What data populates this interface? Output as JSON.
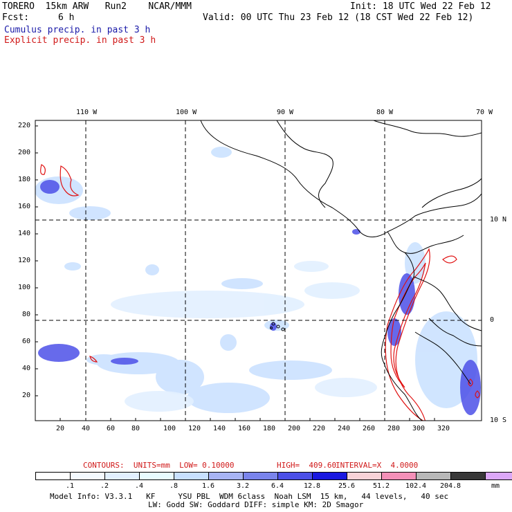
{
  "header": {
    "model": "TORERO  15km ARW   Run2    NCAR/MMM",
    "init": "Init: 18 UTC Wed 22 Feb 12",
    "fcst_label": "Fcst:",
    "fcst_value": "6 h",
    "valid": "Valid: 00 UTC Thu 23 Feb 12 (18 CST Wed 22 Feb 12)",
    "cumulus": "Cumulus precip. in past 3 h",
    "explicit": "Explicit precip. in past 3 h"
  },
  "map": {
    "lon_labels": [
      "110 W",
      "100 W",
      "90 W",
      "80 W",
      "70 W"
    ],
    "lat_labels": [
      "10 N",
      "0",
      "10 S"
    ],
    "y_ticks": [
      "220",
      "200",
      "180",
      "160",
      "140",
      "120",
      "100",
      "80",
      "60",
      "40",
      "20"
    ],
    "x_ticks": [
      "20",
      "40",
      "60",
      "80",
      "100",
      "120",
      "140",
      "160",
      "180",
      "200",
      "220",
      "240",
      "260",
      "280",
      "300",
      "320"
    ]
  },
  "contours": {
    "units_label": "CONTOURS:  UNITS=mm  LOW= 0.10000",
    "high_label": "HIGH=  409.60",
    "interval_label": "INTERVAL=X  4.0000"
  },
  "colorbar": {
    "colors": [
      "#ffffff",
      "#f4faff",
      "#e2f0ff",
      "#e8fbff",
      "#c8e0ff",
      "#a8b4f4",
      "#7a84ec",
      "#4c50e8",
      "#1a18e0",
      "#f8d2d8",
      "#f490b8",
      "#b8b8b8",
      "#383838",
      "#dca8f8"
    ],
    "labels": [
      ".1",
      ".2",
      ".4",
      ".8",
      "1.6",
      "3.2",
      "6.4",
      "12.8",
      "25.6",
      "51.2",
      "102.4",
      "204.8"
    ],
    "unit": "mm"
  },
  "footer": {
    "line1": "Model Info: V3.3.1   KF     YSU PBL  WDM 6class  Noah LSM  15 km,   44 levels,   40 sec",
    "line2": "LW: Godd SW: Goddard DIFF: simple KM: 2D Smagor"
  }
}
